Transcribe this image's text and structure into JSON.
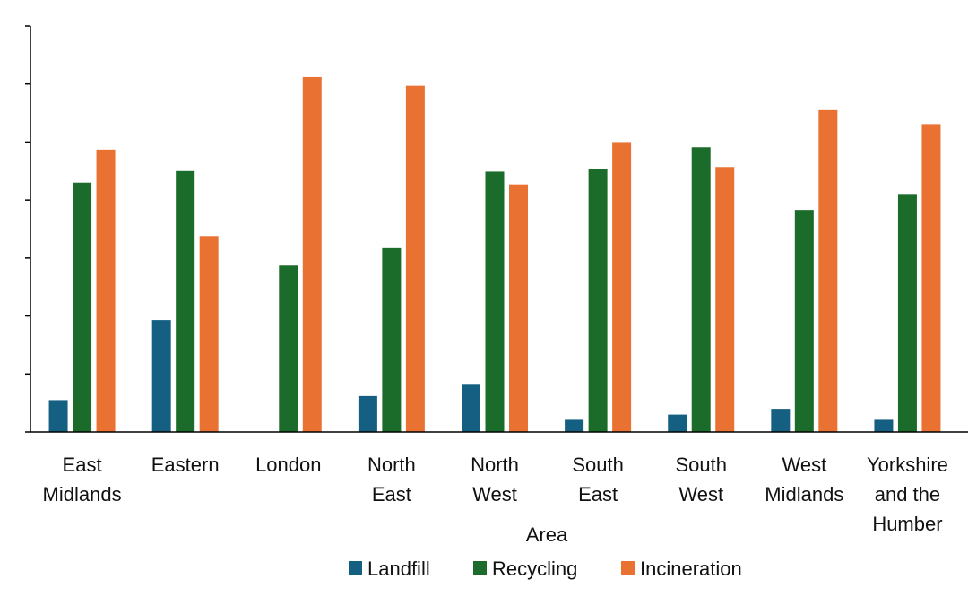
{
  "chart_data": {
    "type": "bar",
    "xlabel": "Area",
    "ylabel": "",
    "ylim": [
      0,
      7
    ],
    "y_ticks": [
      0,
      1,
      2,
      3,
      4,
      5,
      6,
      7
    ],
    "y_tick_labels_visible": false,
    "grid": false,
    "legend_position": "bottom",
    "categories": [
      [
        "East",
        "Midlands"
      ],
      [
        "Eastern"
      ],
      [
        "London"
      ],
      [
        "North",
        "East"
      ],
      [
        "North",
        "West"
      ],
      [
        "South",
        "East"
      ],
      [
        "South",
        "West"
      ],
      [
        "West",
        "Midlands"
      ],
      [
        "Yorkshire",
        "and the",
        "Humber"
      ]
    ],
    "series": [
      {
        "name": "Landfill",
        "color": "#156082",
        "values": [
          0.55,
          1.93,
          0,
          0.62,
          0.83,
          0.21,
          0.3,
          0.4,
          0.21
        ]
      },
      {
        "name": "Recycling",
        "color": "#1b6b2a",
        "values": [
          4.3,
          4.5,
          2.87,
          3.17,
          4.49,
          4.53,
          4.91,
          3.83,
          4.09
        ]
      },
      {
        "name": "Incineration",
        "color": "#e97132",
        "values": [
          4.87,
          3.38,
          6.12,
          5.97,
          4.27,
          5.0,
          4.57,
          5.55,
          5.31
        ]
      }
    ]
  }
}
